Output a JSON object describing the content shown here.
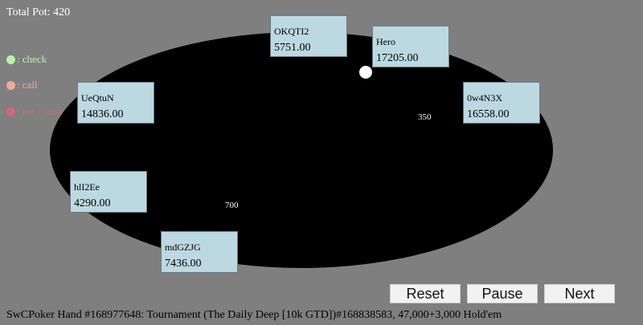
{
  "header": {
    "total_pot": "Total Pot: 420"
  },
  "legend": [
    {
      "label": ": check",
      "color": "#b9f2a9"
    },
    {
      "label": ": call",
      "color": "#f0a99b"
    },
    {
      "label": ": bet / raise",
      "color": "#cf6b78"
    }
  ],
  "seats": {
    "okqti2": {
      "name": "OKQTI2",
      "stack": "5751.00"
    },
    "hero": {
      "name": "Hero",
      "stack": "17205.00"
    },
    "ueqtun": {
      "name": "UeQtuN",
      "stack": "14836.00"
    },
    "ow4n3x": {
      "name": "0w4N3X",
      "stack": "16558.00"
    },
    "hii2ee": {
      "name": "hlI2Ee",
      "stack": "4290.00"
    },
    "mdgzjg": {
      "name": "mdGZJG",
      "stack": "7436.00"
    }
  },
  "bets": {
    "right": "350",
    "left": "700"
  },
  "controls": {
    "reset": "Reset",
    "pause": "Pause",
    "next": "Next"
  },
  "footer": {
    "hand_info": "SwCPoker Hand #168977648: Tournament (The Daily Deep [10k GTD])#168838583, 47,000+3,000 Hold'em"
  }
}
